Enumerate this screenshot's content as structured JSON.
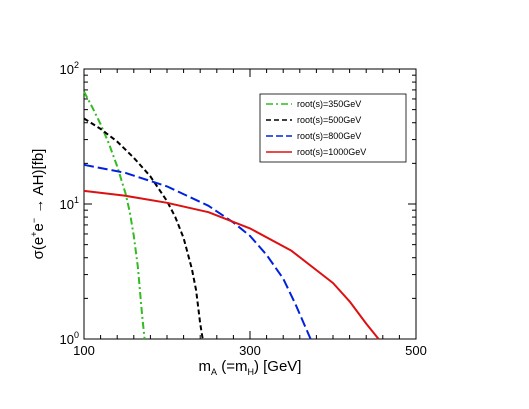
{
  "chart_data": {
    "type": "line",
    "title": "",
    "xlabel": {
      "main": "m",
      "main_sub": "A",
      "paren_open": " (=m",
      "paren_sub": "H",
      "paren_close": ") [GeV]"
    },
    "ylabel": {
      "sigma": "σ(e",
      "plus": "+",
      "e": "e",
      "minus": "−",
      "rest": " → AH)[fb]"
    },
    "xlim": [
      100,
      500
    ],
    "ylim": [
      1,
      100
    ],
    "y_scale": "log",
    "x_ticks": [
      {
        "value": 100,
        "label": "100"
      },
      {
        "value": 300,
        "label": "300"
      },
      {
        "value": 500,
        "label": "500"
      }
    ],
    "y_ticks": [
      {
        "value": 1,
        "base": "10",
        "exp": "0"
      },
      {
        "value": 10,
        "base": "10",
        "exp": "1"
      },
      {
        "value": 100,
        "base": "10",
        "exp": "2"
      }
    ],
    "legend_position": "top-right",
    "series": [
      {
        "name": "root(s)=350GeV",
        "color": "#33bb22",
        "dash": "dashdot",
        "x": [
          100,
          110,
          120,
          130,
          140,
          150,
          155,
          160,
          165,
          170,
          173
        ],
        "y": [
          68,
          52,
          39,
          28,
          19,
          12,
          8.8,
          5.8,
          3.4,
          1.5,
          1.0
        ]
      },
      {
        "name": "root(s)=500GeV",
        "color": "#000000",
        "dash": "dashed",
        "x": [
          100,
          120,
          140,
          160,
          180,
          200,
          210,
          220,
          230,
          235,
          240,
          243
        ],
        "y": [
          43,
          36,
          29,
          22,
          16,
          10.5,
          8.0,
          5.6,
          3.3,
          2.3,
          1.3,
          1.0
        ]
      },
      {
        "name": "root(s)=800GeV",
        "color": "#0022dd",
        "dash": "longdash",
        "x": [
          100,
          150,
          200,
          250,
          280,
          300,
          320,
          340,
          355,
          365,
          373
        ],
        "y": [
          19.5,
          17.0,
          13.5,
          9.7,
          7.3,
          5.8,
          4.2,
          2.8,
          1.8,
          1.3,
          1.0
        ]
      },
      {
        "name": "root(s)=1000GeV",
        "color": "#dd1111",
        "dash": "solid",
        "x": [
          100,
          150,
          200,
          250,
          300,
          350,
          400,
          420,
          440,
          455
        ],
        "y": [
          12.5,
          11.5,
          10.2,
          8.7,
          6.6,
          4.5,
          2.6,
          1.9,
          1.3,
          1.0
        ]
      }
    ]
  }
}
